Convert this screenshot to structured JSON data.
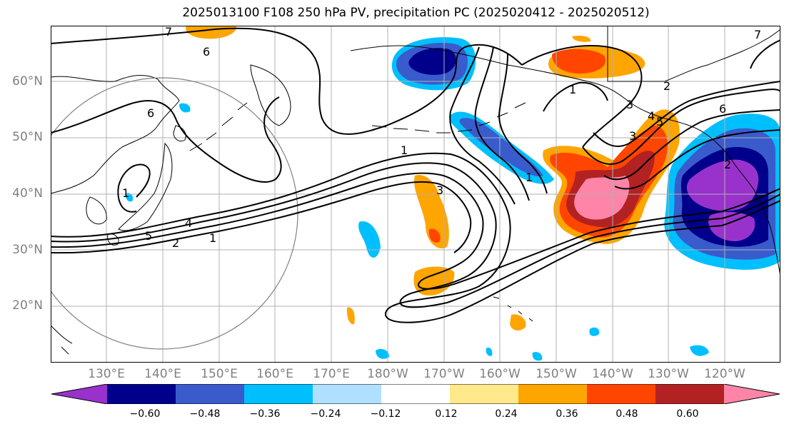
{
  "title": "2025013100 F108 250 hPa PV, precipitation PC (2025020412 - 2025020512)",
  "lat_labels": [
    "60°N",
    "50°N",
    "40°N",
    "30°N",
    "20°N"
  ],
  "lon_labels": [
    "130°E",
    "140°E",
    "150°E",
    "160°E",
    "170°E",
    "180°W",
    "170°W",
    "160°W",
    "150°W",
    "140°W",
    "130°W",
    "120°W"
  ],
  "colorbar": {
    "colors": [
      "#9932CC",
      "#00008B",
      "#3A5BCC",
      "#00BFFF",
      "#B0E0FF",
      "#FFFFFF",
      "#FFE98A",
      "#FFA500",
      "#FF4500",
      "#B22222",
      "#FF85A8"
    ],
    "tick_labels": [
      "−0.60",
      "−0.48",
      "−0.36",
      "−0.24",
      "−0.12",
      "0.12",
      "0.24",
      "0.36",
      "0.48",
      "0.60"
    ]
  },
  "contour_labels": [
    "7",
    "6",
    "1",
    "2",
    "3",
    "6",
    "5",
    "4",
    "1",
    "2",
    "6",
    "5",
    "4",
    "3",
    "2",
    "1",
    "1",
    "1",
    "3",
    "7"
  ],
  "colors": {
    "contour": "#000000",
    "coast": "#000000",
    "grid": "#b0b0b0",
    "circle": "#808080"
  }
}
